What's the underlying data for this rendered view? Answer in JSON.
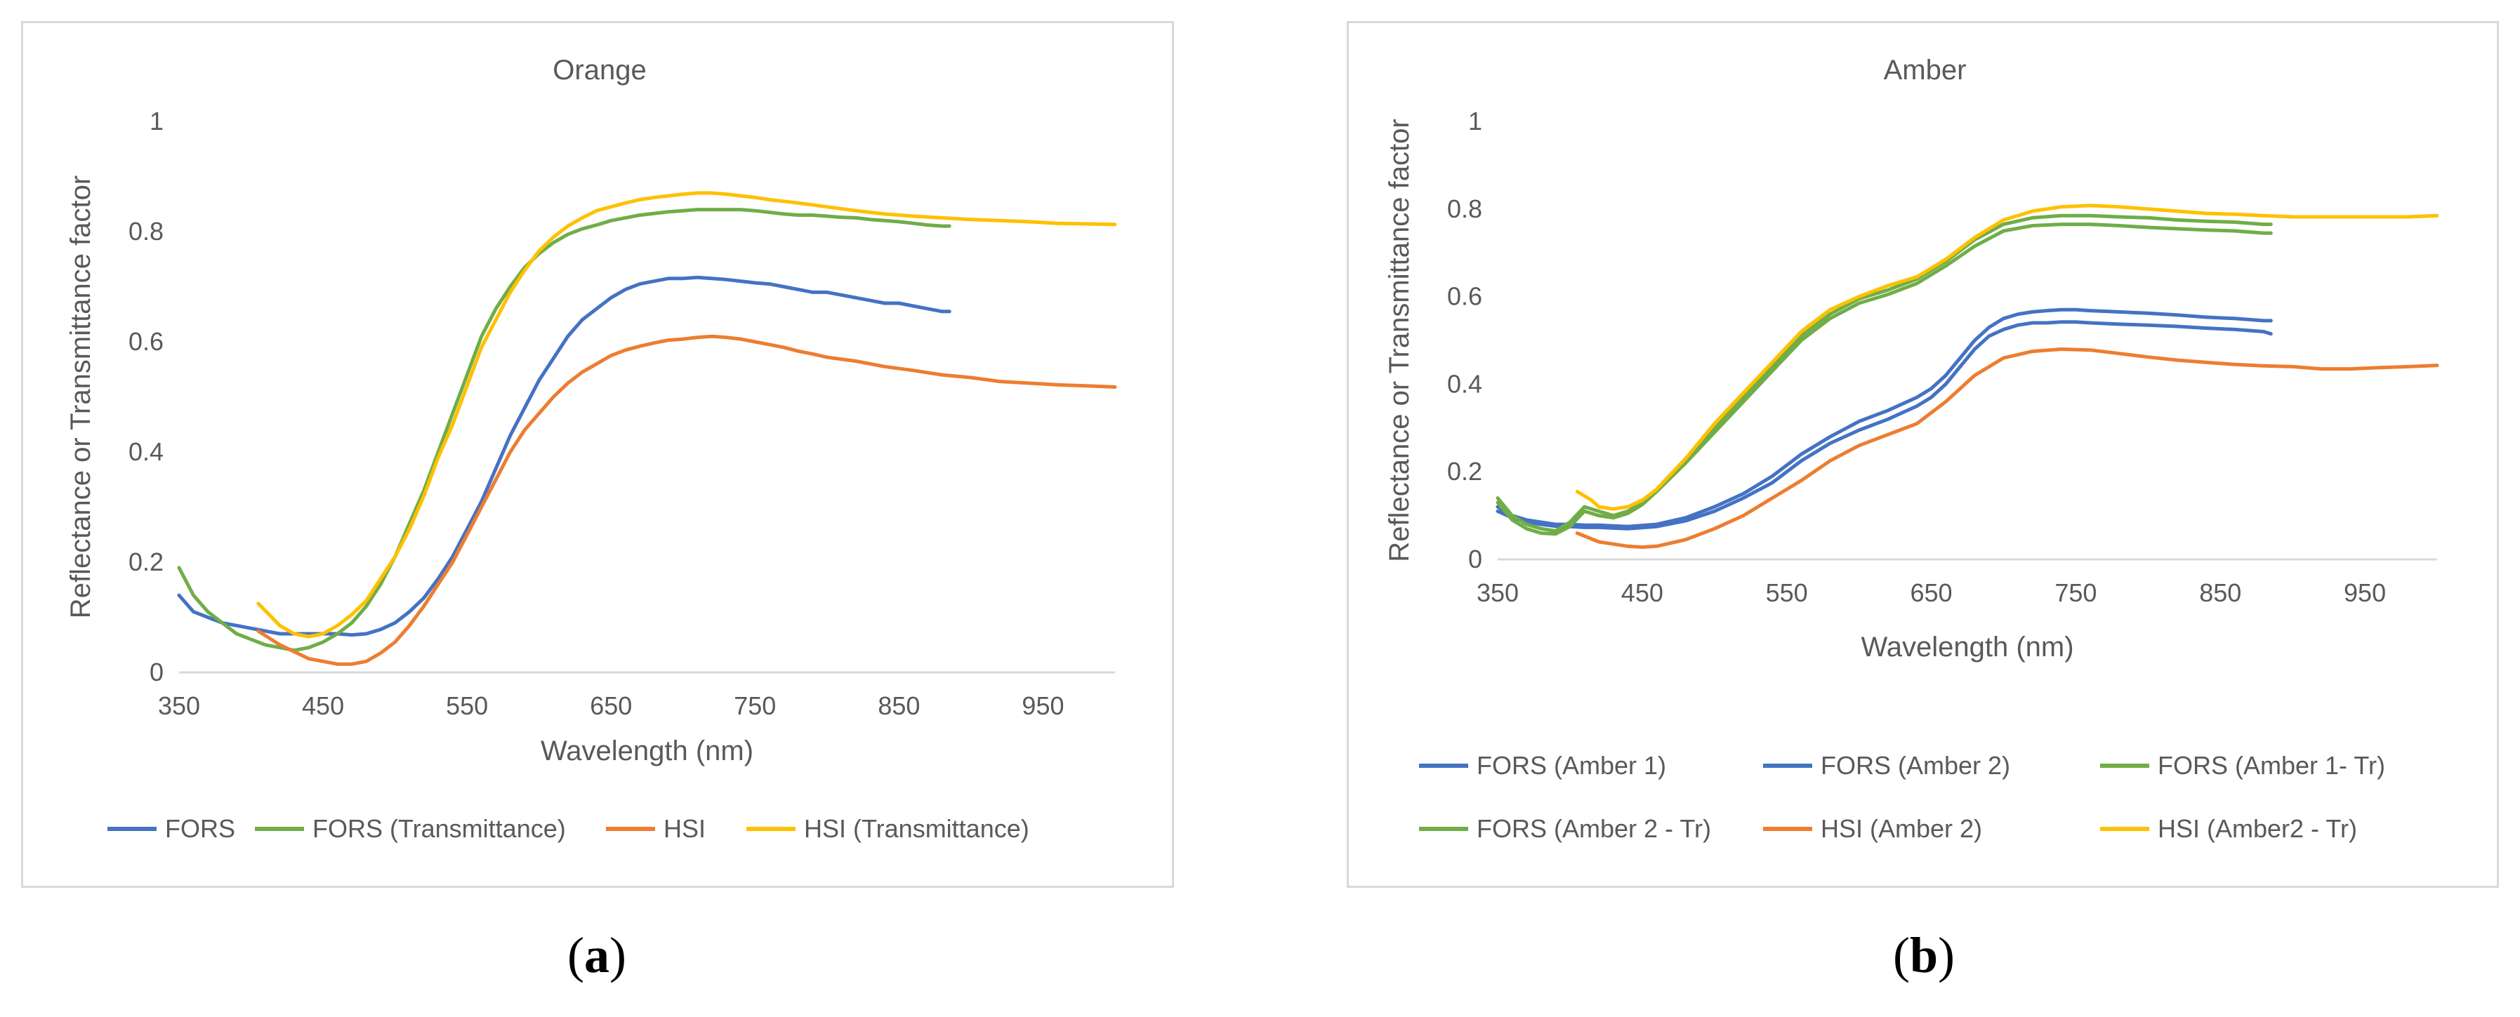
{
  "chart_data": [
    {
      "type": "line",
      "title": "Orange",
      "xlabel": "Wavelength (nm)",
      "ylabel": "Reflectance or Transmittance factor",
      "xlim": [
        350,
        1000
      ],
      "ylim": [
        0,
        1
      ],
      "xticks": [
        350,
        450,
        550,
        650,
        750,
        850,
        950
      ],
      "xtick_labels": [
        "350",
        "450",
        "550",
        "650",
        "750",
        "850",
        "950"
      ],
      "yticks": [
        0,
        0.2,
        0.4,
        0.6,
        0.8,
        1
      ],
      "ytick_labels": [
        "0",
        "0.2",
        "0.4",
        "0.6",
        "0.8",
        "1"
      ],
      "legend_position": "bottom",
      "series": [
        {
          "name": "FORS",
          "color": "#4472c4",
          "x": [
            350,
            360,
            370,
            380,
            390,
            400,
            410,
            420,
            440,
            460,
            470,
            480,
            490,
            500,
            510,
            520,
            530,
            540,
            550,
            560,
            570,
            580,
            590,
            600,
            610,
            620,
            630,
            640,
            650,
            660,
            670,
            680,
            690,
            700,
            710,
            720,
            730,
            740,
            750,
            760,
            770,
            780,
            790,
            800,
            810,
            820,
            830,
            840,
            850,
            860,
            870,
            880,
            885
          ],
          "y": [
            0.14,
            0.11,
            0.1,
            0.09,
            0.085,
            0.08,
            0.075,
            0.07,
            0.07,
            0.07,
            0.068,
            0.07,
            0.078,
            0.09,
            0.11,
            0.135,
            0.17,
            0.21,
            0.26,
            0.31,
            0.37,
            0.43,
            0.48,
            0.53,
            0.57,
            0.61,
            0.64,
            0.66,
            0.68,
            0.695,
            0.705,
            0.71,
            0.715,
            0.715,
            0.717,
            0.715,
            0.713,
            0.71,
            0.707,
            0.705,
            0.7,
            0.695,
            0.69,
            0.69,
            0.685,
            0.68,
            0.675,
            0.67,
            0.67,
            0.665,
            0.66,
            0.655,
            0.655
          ]
        },
        {
          "name": "FORS (Transmittance)",
          "color": "#70ad47",
          "x": [
            350,
            360,
            370,
            380,
            390,
            400,
            410,
            420,
            430,
            440,
            450,
            460,
            470,
            480,
            490,
            500,
            510,
            520,
            530,
            540,
            550,
            560,
            570,
            580,
            590,
            600,
            610,
            620,
            630,
            640,
            650,
            660,
            670,
            680,
            690,
            700,
            710,
            720,
            730,
            740,
            750,
            760,
            770,
            780,
            790,
            800,
            810,
            820,
            830,
            840,
            850,
            860,
            870,
            880,
            885
          ],
          "y": [
            0.19,
            0.14,
            0.11,
            0.09,
            0.07,
            0.06,
            0.05,
            0.045,
            0.04,
            0.045,
            0.055,
            0.07,
            0.09,
            0.12,
            0.16,
            0.21,
            0.27,
            0.33,
            0.4,
            0.47,
            0.54,
            0.61,
            0.66,
            0.7,
            0.735,
            0.76,
            0.78,
            0.795,
            0.805,
            0.812,
            0.82,
            0.825,
            0.83,
            0.833,
            0.836,
            0.838,
            0.84,
            0.84,
            0.84,
            0.84,
            0.838,
            0.835,
            0.832,
            0.83,
            0.83,
            0.828,
            0.826,
            0.825,
            0.822,
            0.82,
            0.818,
            0.815,
            0.812,
            0.81,
            0.81
          ]
        },
        {
          "name": "HSI",
          "color": "#ed7d31",
          "x": [
            405,
            420,
            440,
            460,
            470,
            480,
            490,
            500,
            510,
            520,
            530,
            540,
            550,
            560,
            570,
            580,
            590,
            600,
            610,
            620,
            630,
            640,
            650,
            660,
            670,
            680,
            690,
            700,
            710,
            720,
            730,
            740,
            750,
            760,
            770,
            780,
            790,
            800,
            820,
            840,
            860,
            880,
            900,
            920,
            940,
            960,
            980,
            1000
          ],
          "y": [
            0.075,
            0.05,
            0.025,
            0.015,
            0.015,
            0.02,
            0.035,
            0.055,
            0.085,
            0.12,
            0.16,
            0.2,
            0.25,
            0.3,
            0.35,
            0.4,
            0.44,
            0.47,
            0.5,
            0.525,
            0.545,
            0.56,
            0.575,
            0.585,
            0.592,
            0.598,
            0.603,
            0.605,
            0.608,
            0.61,
            0.608,
            0.605,
            0.6,
            0.595,
            0.59,
            0.583,
            0.578,
            0.572,
            0.565,
            0.555,
            0.548,
            0.54,
            0.535,
            0.528,
            0.525,
            0.522,
            0.52,
            0.518
          ]
        },
        {
          "name": "HSI (Transmittance)",
          "color": "#ffc000",
          "x": [
            405,
            420,
            430,
            440,
            450,
            460,
            470,
            480,
            490,
            500,
            510,
            520,
            530,
            540,
            550,
            560,
            570,
            580,
            590,
            600,
            610,
            620,
            630,
            640,
            650,
            660,
            670,
            680,
            690,
            700,
            710,
            720,
            730,
            740,
            750,
            760,
            770,
            780,
            800,
            820,
            840,
            860,
            880,
            900,
            920,
            940,
            960,
            980,
            1000
          ],
          "y": [
            0.125,
            0.085,
            0.07,
            0.065,
            0.07,
            0.085,
            0.105,
            0.13,
            0.17,
            0.21,
            0.26,
            0.32,
            0.39,
            0.45,
            0.52,
            0.59,
            0.64,
            0.69,
            0.73,
            0.765,
            0.79,
            0.81,
            0.825,
            0.838,
            0.845,
            0.852,
            0.858,
            0.862,
            0.865,
            0.868,
            0.87,
            0.87,
            0.868,
            0.865,
            0.862,
            0.858,
            0.855,
            0.852,
            0.845,
            0.838,
            0.832,
            0.828,
            0.825,
            0.822,
            0.82,
            0.818,
            0.815,
            0.814,
            0.813
          ]
        }
      ]
    },
    {
      "type": "line",
      "title": "Amber",
      "xlabel": "Wavelength (nm)",
      "ylabel": "Reflectance or Transmittance factor",
      "xlim": [
        350,
        1000
      ],
      "ylim": [
        0,
        1
      ],
      "xticks": [
        350,
        450,
        550,
        650,
        750,
        850,
        950
      ],
      "xtick_labels": [
        "350",
        "450",
        "550",
        "650",
        "750",
        "850",
        "950"
      ],
      "yticks": [
        0,
        0.2,
        0.4,
        0.6,
        0.8,
        1
      ],
      "ytick_labels": [
        "0",
        "0.2",
        "0.4",
        "0.6",
        "0.8",
        "1"
      ],
      "legend_position": "bottom",
      "series": [
        {
          "name": "FORS (Amber 1)",
          "color": "#4472c4",
          "x": [
            350,
            360,
            370,
            380,
            390,
            400,
            410,
            420,
            440,
            460,
            480,
            500,
            520,
            540,
            560,
            580,
            600,
            620,
            640,
            650,
            660,
            670,
            680,
            690,
            700,
            710,
            720,
            730,
            740,
            750,
            760,
            780,
            800,
            820,
            840,
            860,
            880,
            885
          ],
          "y": [
            0.12,
            0.1,
            0.09,
            0.085,
            0.08,
            0.08,
            0.078,
            0.078,
            0.075,
            0.08,
            0.095,
            0.12,
            0.15,
            0.19,
            0.24,
            0.28,
            0.315,
            0.34,
            0.37,
            0.39,
            0.42,
            0.46,
            0.5,
            0.53,
            0.55,
            0.56,
            0.565,
            0.568,
            0.57,
            0.57,
            0.568,
            0.565,
            0.562,
            0.558,
            0.553,
            0.55,
            0.545,
            0.545
          ]
        },
        {
          "name": "FORS (Amber 2)",
          "color": "#4472c4",
          "x": [
            350,
            360,
            370,
            380,
            390,
            400,
            410,
            420,
            440,
            460,
            480,
            500,
            520,
            540,
            560,
            580,
            600,
            620,
            640,
            650,
            660,
            670,
            680,
            690,
            700,
            710,
            720,
            730,
            740,
            750,
            760,
            780,
            800,
            820,
            840,
            860,
            880,
            885
          ],
          "y": [
            0.11,
            0.095,
            0.085,
            0.08,
            0.076,
            0.075,
            0.073,
            0.073,
            0.07,
            0.075,
            0.088,
            0.11,
            0.14,
            0.175,
            0.225,
            0.265,
            0.295,
            0.32,
            0.35,
            0.37,
            0.4,
            0.44,
            0.48,
            0.51,
            0.525,
            0.535,
            0.54,
            0.54,
            0.542,
            0.542,
            0.54,
            0.537,
            0.535,
            0.532,
            0.528,
            0.525,
            0.52,
            0.515
          ]
        },
        {
          "name": "FORS (Amber 1- Tr)",
          "color": "#70ad47",
          "x": [
            350,
            360,
            370,
            380,
            390,
            400,
            410,
            420,
            430,
            440,
            450,
            460,
            480,
            500,
            520,
            540,
            560,
            580,
            600,
            620,
            640,
            660,
            680,
            700,
            720,
            740,
            760,
            780,
            800,
            820,
            840,
            860,
            880,
            885
          ],
          "y": [
            0.14,
            0.1,
            0.08,
            0.07,
            0.065,
            0.085,
            0.12,
            0.11,
            0.1,
            0.11,
            0.13,
            0.16,
            0.23,
            0.3,
            0.37,
            0.44,
            0.51,
            0.56,
            0.595,
            0.615,
            0.64,
            0.68,
            0.73,
            0.765,
            0.78,
            0.785,
            0.785,
            0.782,
            0.78,
            0.775,
            0.772,
            0.77,
            0.765,
            0.765
          ]
        },
        {
          "name": "FORS (Amber 2 - Tr)",
          "color": "#70ad47",
          "x": [
            350,
            360,
            370,
            380,
            390,
            400,
            410,
            420,
            430,
            440,
            450,
            460,
            480,
            500,
            520,
            540,
            560,
            580,
            600,
            620,
            640,
            660,
            680,
            700,
            720,
            740,
            760,
            780,
            800,
            820,
            840,
            860,
            880,
            885
          ],
          "y": [
            0.13,
            0.09,
            0.07,
            0.06,
            0.058,
            0.075,
            0.11,
            0.1,
            0.095,
            0.105,
            0.125,
            0.155,
            0.22,
            0.29,
            0.36,
            0.43,
            0.5,
            0.55,
            0.585,
            0.605,
            0.63,
            0.67,
            0.715,
            0.75,
            0.762,
            0.765,
            0.765,
            0.762,
            0.758,
            0.755,
            0.752,
            0.75,
            0.745,
            0.745
          ]
        },
        {
          "name": "HSI (Amber 2)",
          "color": "#ed7d31",
          "x": [
            405,
            420,
            440,
            450,
            460,
            480,
            500,
            520,
            540,
            560,
            580,
            600,
            620,
            640,
            660,
            680,
            700,
            720,
            740,
            760,
            780,
            800,
            820,
            840,
            860,
            880,
            900,
            920,
            940,
            960,
            980,
            1000
          ],
          "y": [
            0.06,
            0.04,
            0.03,
            0.028,
            0.03,
            0.045,
            0.07,
            0.1,
            0.14,
            0.18,
            0.225,
            0.26,
            0.285,
            0.31,
            0.36,
            0.42,
            0.46,
            0.475,
            0.48,
            0.478,
            0.47,
            0.462,
            0.455,
            0.45,
            0.445,
            0.442,
            0.44,
            0.435,
            0.435,
            0.438,
            0.44,
            0.443
          ]
        },
        {
          "name": "HSI (Amber2 - Tr)",
          "color": "#ffc000",
          "x": [
            405,
            415,
            420,
            430,
            440,
            450,
            460,
            480,
            500,
            520,
            540,
            560,
            580,
            600,
            620,
            640,
            660,
            680,
            700,
            720,
            740,
            760,
            780,
            800,
            820,
            840,
            860,
            880,
            900,
            920,
            940,
            960,
            980,
            1000
          ],
          "y": [
            0.155,
            0.135,
            0.12,
            0.115,
            0.12,
            0.135,
            0.16,
            0.23,
            0.31,
            0.38,
            0.45,
            0.52,
            0.57,
            0.6,
            0.625,
            0.645,
            0.685,
            0.735,
            0.775,
            0.795,
            0.805,
            0.808,
            0.805,
            0.8,
            0.795,
            0.79,
            0.788,
            0.785,
            0.782,
            0.782,
            0.782,
            0.782,
            0.782,
            0.785
          ]
        }
      ]
    }
  ],
  "captions": {
    "a": "a",
    "b": "b"
  }
}
